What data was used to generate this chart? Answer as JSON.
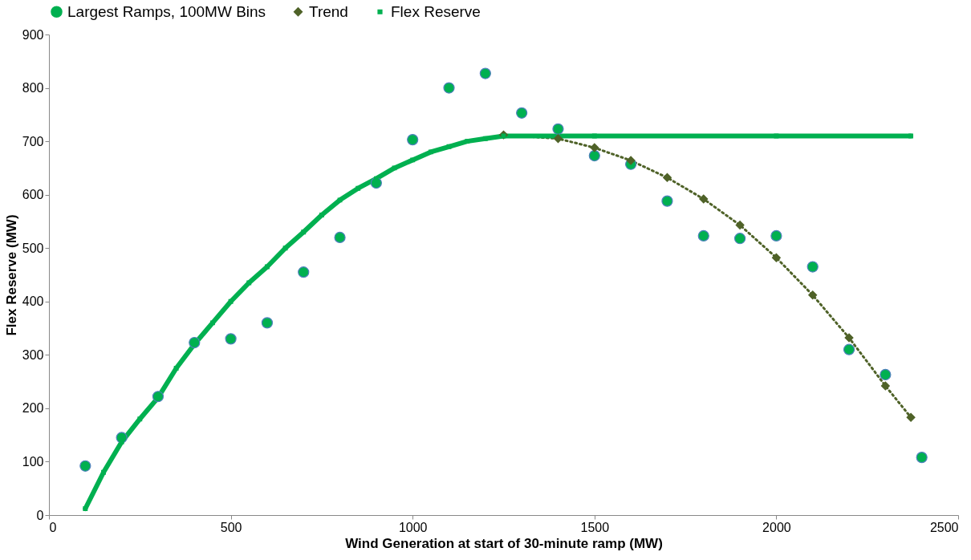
{
  "chart_data": {
    "type": "scatter",
    "xlabel": "Wind Generation at start of 30-minute ramp (MW)",
    "ylabel": "Flex Reserve (MW)",
    "xlim": [
      0,
      2500
    ],
    "xticks": [
      0,
      500,
      1000,
      1500,
      2000,
      2500
    ],
    "ylim": [
      0,
      900
    ],
    "yticks": [
      0,
      100,
      200,
      300,
      400,
      500,
      600,
      700,
      800,
      900
    ],
    "grid": false,
    "legend": "top",
    "series": [
      {
        "name": "Largest Ramps, 100MW Bins",
        "type": "scatter",
        "marker": "circle",
        "color": "#00b050",
        "x": [
          100,
          200,
          300,
          400,
          500,
          600,
          700,
          800,
          900,
          1000,
          1100,
          1200,
          1300,
          1400,
          1500,
          1600,
          1700,
          1800,
          1900,
          2000,
          2100,
          2200,
          2300,
          2400
        ],
        "values": [
          92,
          145,
          222,
          323,
          330,
          360,
          455,
          520,
          622,
          703,
          800,
          827,
          753,
          723,
          673,
          657,
          588,
          523,
          518,
          523,
          465,
          310,
          263,
          108
        ]
      },
      {
        "name": "Trend",
        "type": "line",
        "marker": "diamond",
        "line_style": "dotted",
        "color": "#4f6228",
        "x": [
          1250,
          1400,
          1500,
          1600,
          1700,
          1800,
          1900,
          2000,
          2100,
          2200,
          2300,
          2370
        ],
        "values": [
          712,
          705,
          688,
          664,
          632,
          592,
          543,
          482,
          412,
          332,
          242,
          183
        ]
      },
      {
        "name": "Flex Reserve",
        "type": "line",
        "marker": "square",
        "line_style": "solid",
        "color": "#00b050",
        "x": [
          100,
          150,
          200,
          250,
          300,
          350,
          400,
          450,
          500,
          550,
          600,
          650,
          700,
          750,
          800,
          850,
          900,
          950,
          1000,
          1050,
          1100,
          1150,
          1200,
          1250,
          1500,
          2000,
          2370
        ],
        "values": [
          12,
          80,
          137,
          180,
          220,
          275,
          320,
          360,
          400,
          435,
          465,
          500,
          530,
          562,
          590,
          612,
          630,
          650,
          665,
          680,
          690,
          700,
          705,
          710,
          710,
          710,
          710
        ]
      }
    ]
  }
}
